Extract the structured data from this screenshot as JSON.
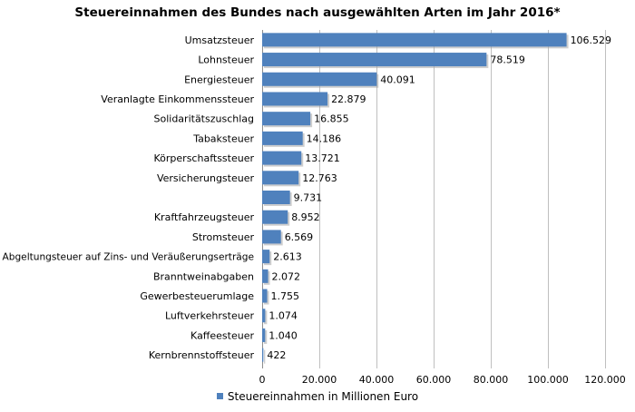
{
  "chart_data": {
    "type": "bar",
    "orientation": "horizontal",
    "title": "Steuereinnahmen des Bundes nach ausgewählten Arten im Jahr 2016*",
    "categories": [
      "Umsatzsteuer",
      "Lohnsteuer",
      "Energiesteuer",
      "Veranlagte Einkommenssteuer",
      "Solidaritätszuschlag",
      "Tabaksteuer",
      "Körperschaftssteuer",
      "Versicherungsteuer",
      "",
      "Kraftfahrzeugsteuer",
      "Stromsteuer",
      "Abgeltungsteuer auf Zins- und Veräußerungserträge",
      "Branntweinabgaben",
      "Gewerbesteuerumlage",
      "Luftverkehrsteuer",
      "Kaffeesteuer",
      "Kernbrennstoffsteuer"
    ],
    "series": [
      {
        "name": "Steuereinnahmen in Millionen Euro",
        "color": "#4f81bd",
        "values": [
          106529,
          78519,
          40091,
          22879,
          16855,
          14186,
          13721,
          12763,
          9731,
          8952,
          6569,
          2613,
          2072,
          1755,
          1074,
          1040,
          422
        ],
        "labels": [
          "106.529",
          "78.519",
          "40.091",
          "22.879",
          "16.855",
          "14.186",
          "13.721",
          "12.763",
          "9.731",
          "8.952",
          "6.569",
          "2.613",
          "2.072",
          "1.755",
          "1.074",
          "1.040",
          "422"
        ]
      }
    ],
    "xlim": [
      0,
      120000
    ],
    "xticks": [
      0,
      20000,
      40000,
      60000,
      80000,
      100000,
      120000
    ],
    "xtick_labels": [
      "0",
      "20.000",
      "40.000",
      "60.000",
      "80.000",
      "100.000",
      "120.000"
    ],
    "grid": true,
    "legend_position": "bottom"
  }
}
